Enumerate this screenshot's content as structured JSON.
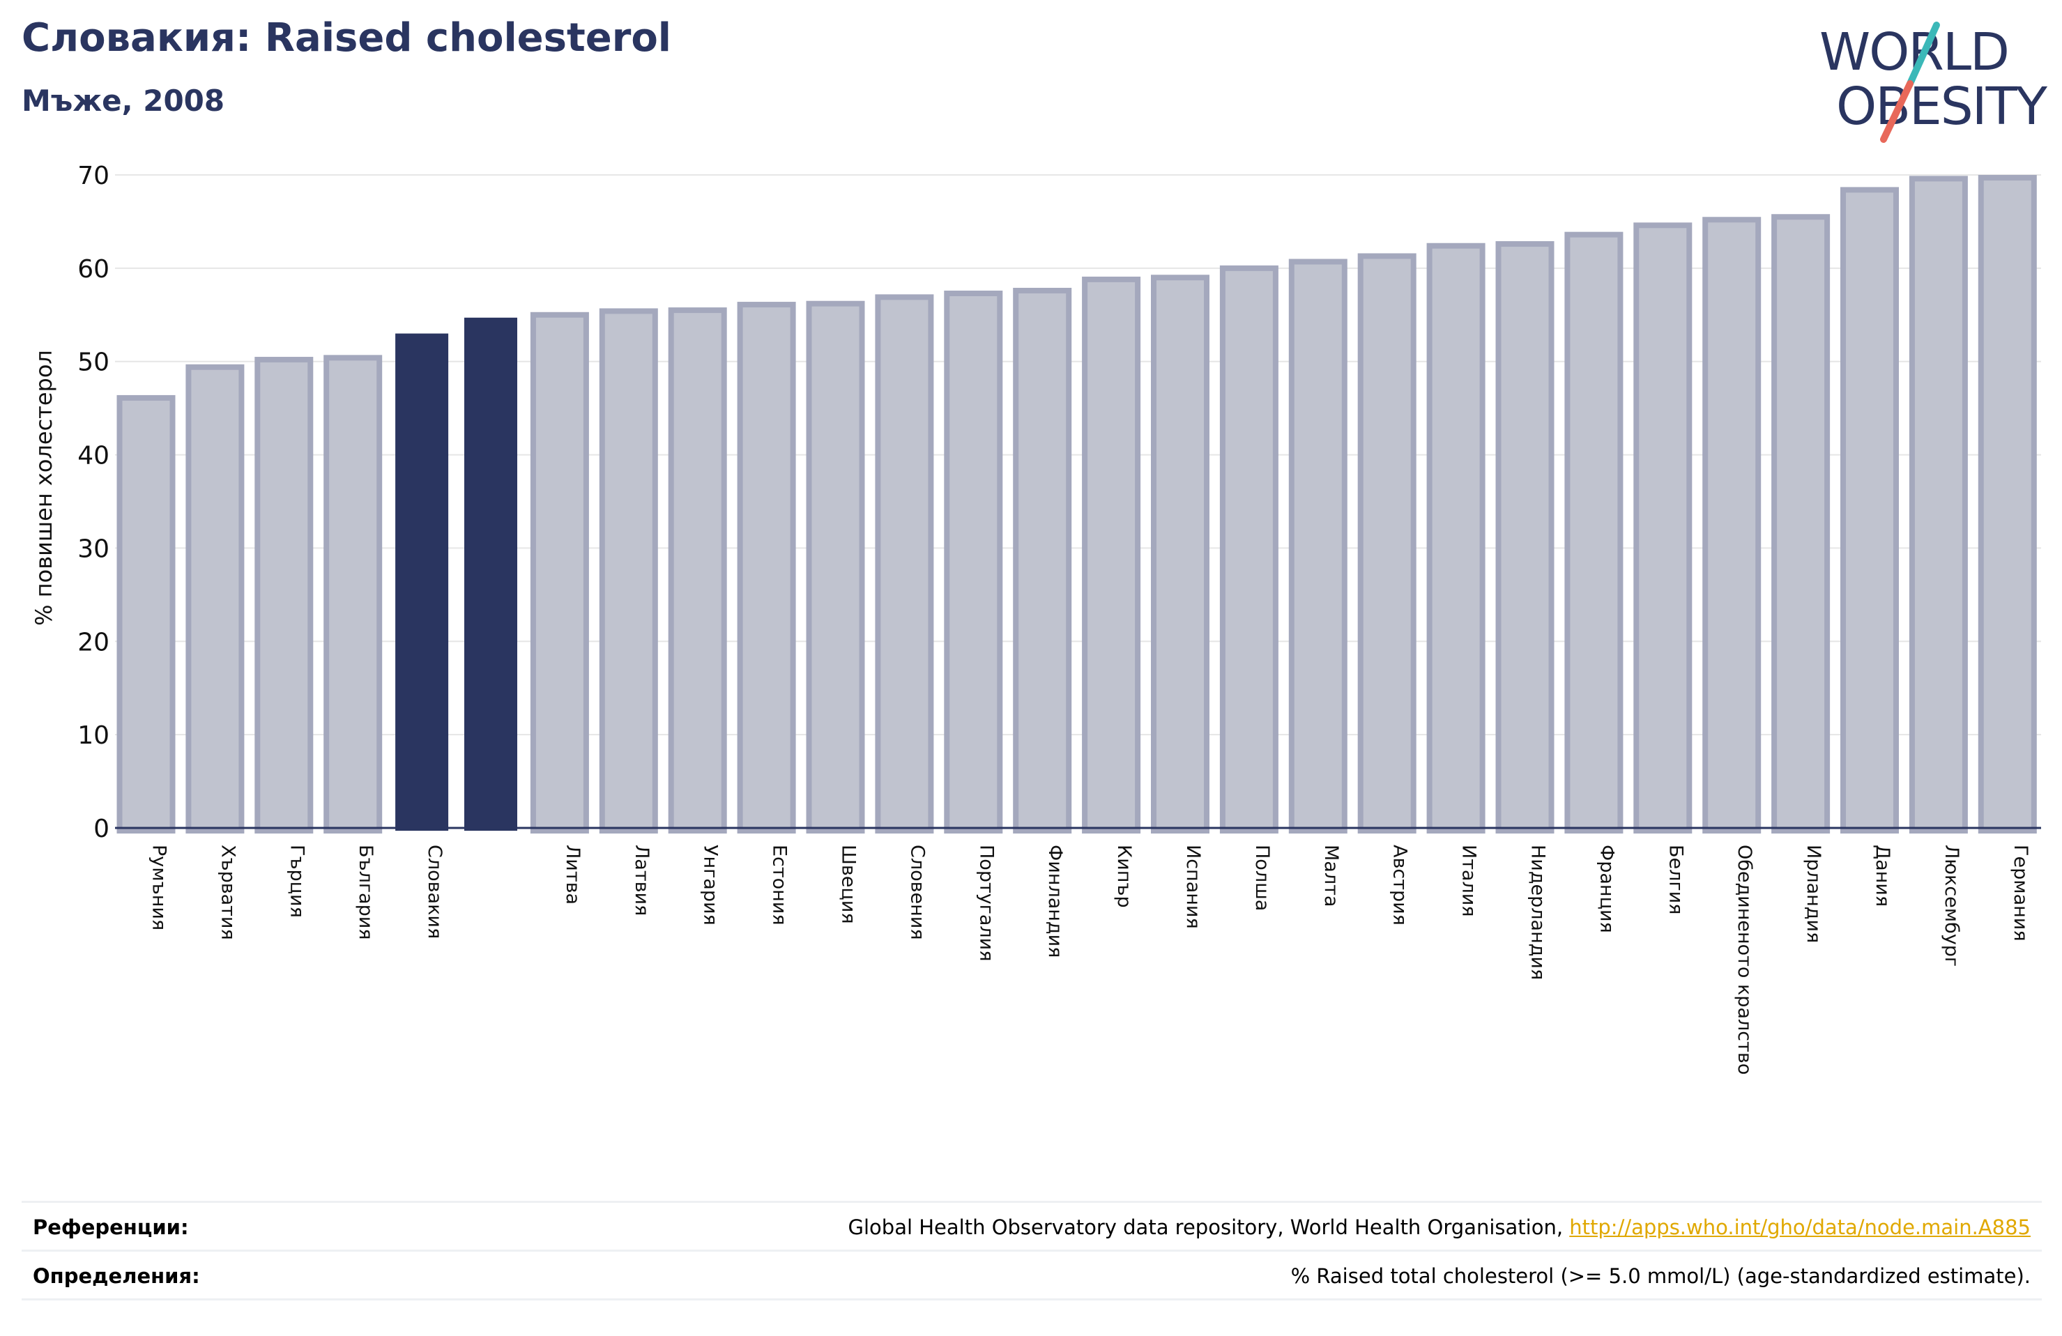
{
  "header": {
    "title": "Словакия: Raised cholesterol",
    "subtitle": "Мъже, 2008"
  },
  "logo": {
    "line1": "WORLD",
    "line2": "OBESITY",
    "colors": {
      "text": "#2a3560",
      "slash_teal": "#3bb8b8",
      "slash_coral": "#e8685a"
    }
  },
  "colors": {
    "bar_default": "#c0c3cf",
    "bar_default_stroke": "#a4a8bd",
    "bar_highlight": "#2a3560",
    "axis": "#2a3560",
    "grid": "#e6e6e6"
  },
  "chart_data": {
    "type": "bar",
    "title": "",
    "xlabel": "",
    "ylabel": "% повишен холестерол",
    "ylim": [
      0,
      70
    ],
    "yticks": [
      0,
      10,
      20,
      30,
      40,
      50,
      60,
      70
    ],
    "grid": true,
    "categories": [
      "Румъния",
      "Хърватия",
      "Гърция",
      "България",
      "Словакия",
      "",
      "Литва",
      "Латвия",
      "Унгария",
      "Естония",
      "Швеция",
      "Словения",
      "Португалия",
      "Финландия",
      "Кипър",
      "Испания",
      "Полша",
      "Малта",
      "Австрия",
      "Италия",
      "Нидерландия",
      "Франция",
      "Белгия",
      "Обединеното кралство",
      "Ирландия",
      "Дания",
      "Люксембург",
      "Германия"
    ],
    "values": [
      46.1,
      49.4,
      50.2,
      50.4,
      53.0,
      54.7,
      55.0,
      55.4,
      55.5,
      56.1,
      56.2,
      56.9,
      57.3,
      57.6,
      58.8,
      59.0,
      60.0,
      60.7,
      61.3,
      62.4,
      62.6,
      63.6,
      64.6,
      65.2,
      65.5,
      68.4,
      69.6,
      69.7
    ],
    "highlighted": [
      4,
      5
    ]
  },
  "footer": {
    "references_label": "Референции:",
    "references_text": "Global Health Observatory data repository, World Health Organisation, ",
    "references_link": "http://apps.who.int/gho/data/node.main.A885",
    "definitions_label": "Определения:",
    "definitions_text": "% Raised total cholesterol (>= 5.0 mmol/L) (age-standardized estimate)."
  }
}
